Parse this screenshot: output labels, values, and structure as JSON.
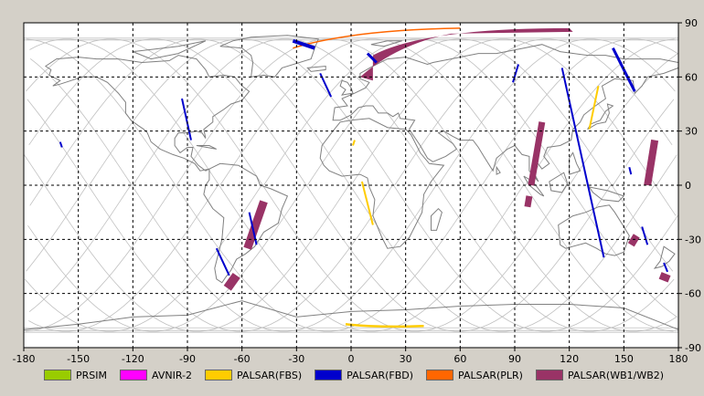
{
  "map": {
    "x_ticks": [
      "-180",
      "-150",
      "-120",
      "-90",
      "-60",
      "-30",
      "0",
      "30",
      "60",
      "90",
      "120",
      "150",
      "180"
    ],
    "y_ticks": [
      "90",
      "60",
      "30",
      "0",
      "-30",
      "-60",
      "-90"
    ],
    "lon_values": [
      -180,
      -150,
      -120,
      -90,
      -60,
      -30,
      0,
      30,
      60,
      90,
      120,
      150,
      180
    ],
    "lat_values": [
      90,
      60,
      30,
      0,
      -30,
      -60,
      -90
    ]
  },
  "legend": [
    {
      "label": "PRSIM",
      "color": "#99cc00"
    },
    {
      "label": "AVNIR-2",
      "color": "#ff00ff"
    },
    {
      "label": "PALSAR(FBS)",
      "color": "#ffcc00"
    },
    {
      "label": "PALSAR(FBD)",
      "color": "#0000cc"
    },
    {
      "label": "PALSAR(PLR)",
      "color": "#ff6600"
    },
    {
      "label": "PALSAR(WB1/WB2)",
      "color": "#993366"
    }
  ],
  "colors": {
    "background": "#d4d0c8",
    "map": "#ffffff",
    "coast": "#808080",
    "orbit": "#c0c0c0",
    "grid": "#000000"
  }
}
